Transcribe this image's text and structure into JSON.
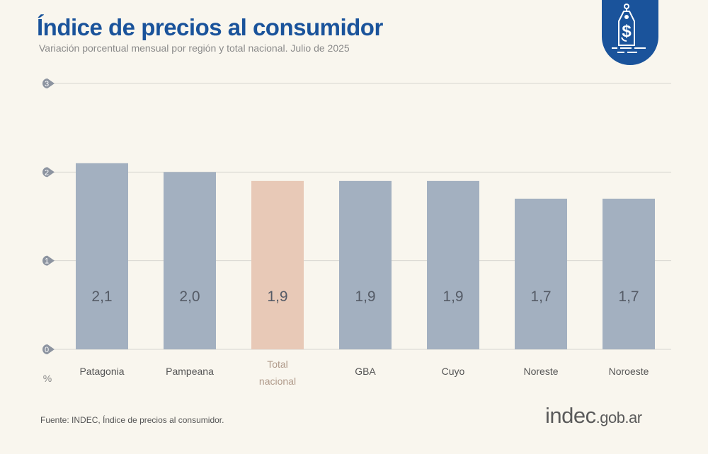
{
  "title": "Índice de precios al consumidor",
  "subtitle": "Variación porcentual mensual por región y total nacional. Julio de 2025",
  "source": "Fuente: INDEC, Índice de precios al consumidor.",
  "logo": {
    "main": "indec",
    "suffix": ".gob.ar"
  },
  "icon": "price-tag-dollar-icon",
  "colors": {
    "brand": "#1a539b",
    "bar": "#a3b0c0",
    "highlight": "#e8c9b7",
    "background": "#f9f6ee"
  },
  "chart_data": {
    "type": "bar",
    "categories": [
      "Patagonia",
      "Pampeana",
      "Total nacional",
      "GBA",
      "Cuyo",
      "Noreste",
      "Noroeste"
    ],
    "values": [
      2.1,
      2.0,
      1.9,
      1.9,
      1.9,
      1.7,
      1.7
    ],
    "data_labels": [
      "2,1",
      "2,0",
      "1,9",
      "1,9",
      "1,9",
      "1,7",
      "1,7"
    ],
    "highlight": "Total nacional",
    "ylabel": "%",
    "ylim": [
      0,
      3
    ],
    "yticks": [
      "0",
      "1",
      "2",
      "3"
    ],
    "grid": true
  }
}
